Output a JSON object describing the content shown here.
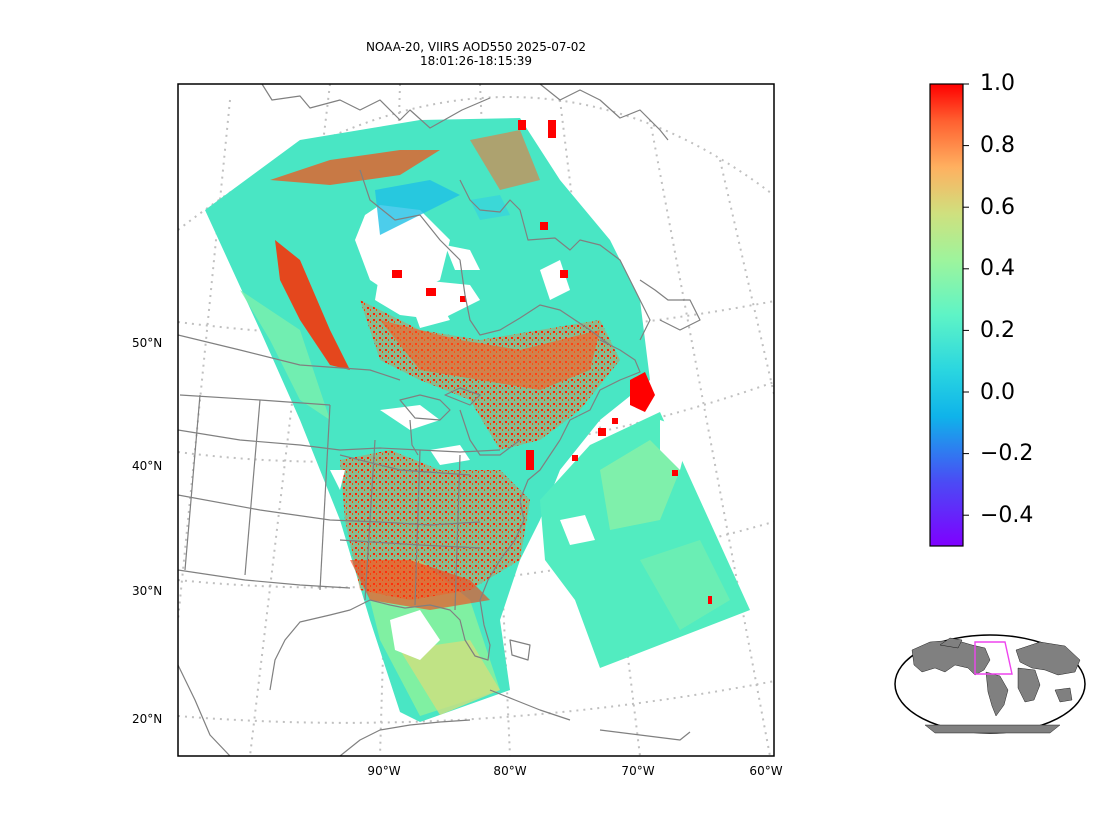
{
  "title_line1": "NOAA-20, VIIRS AOD550 2025-07-02",
  "title_line2": "18:01:26-18:15:39",
  "lat_labels": [
    "50°N",
    "40°N",
    "30°N",
    "20°N"
  ],
  "lon_labels": [
    "90°W",
    "80°W",
    "70°W",
    "60°W"
  ],
  "colorbar": {
    "tick_labels": [
      "1.0",
      "0.8",
      "0.6",
      "0.4",
      "0.2",
      "0.0",
      "−0.2",
      "−0.4"
    ],
    "min": -0.5,
    "max": 1.0,
    "colormap": "rainbow"
  },
  "inset": {
    "map_type": "world overview",
    "land_color": "#808080",
    "highlight_color": "#ee44ee"
  },
  "colors": {
    "coastline": "#808080",
    "graticule": "#c0c0c0",
    "aod_low": "#49e6c4",
    "aod_high": "#ff1a00"
  }
}
